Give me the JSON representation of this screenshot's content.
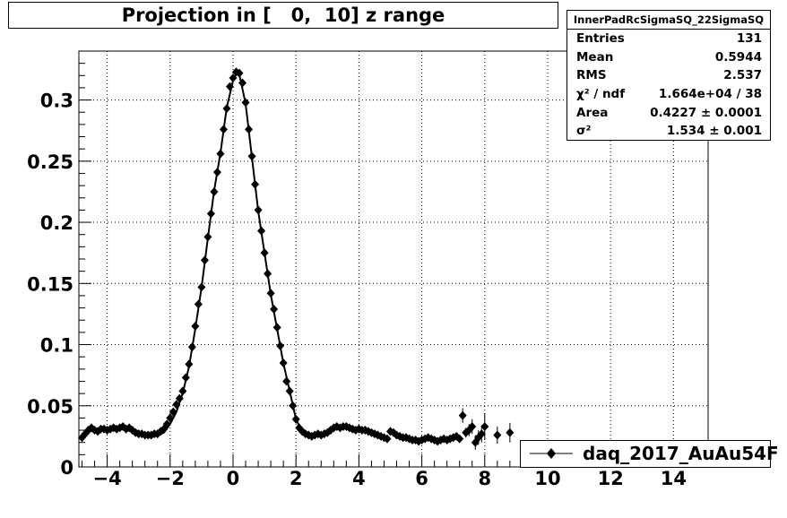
{
  "title": "Projection in [   0,  10] z range",
  "stats": {
    "name": "InnerPadRcSigmaSQ_22SigmaSQ",
    "rows": [
      {
        "label": "Entries",
        "value": "131"
      },
      {
        "label": "Mean",
        "value": "0.5944"
      },
      {
        "label": "RMS",
        "value": "2.537"
      },
      {
        "label": "χ² / ndf",
        "value": "1.664e+04 / 38"
      },
      {
        "label": "Area",
        "value": "0.4227 ± 0.0001"
      },
      {
        "label": "σ²",
        "value": "1.534 ± 0.001"
      }
    ]
  },
  "legend": {
    "label": "daq_2017_AuAu54F"
  },
  "chart_data": {
    "type": "scatter",
    "xlim": [
      -4.9,
      15.1
    ],
    "ylim": [
      0,
      0.34
    ],
    "grid": true,
    "legend_position": "bottom-right",
    "x_ticks": [
      -4,
      -2,
      0,
      2,
      4,
      6,
      8,
      10,
      12,
      14
    ],
    "x_tick_labels": [
      "−4",
      "−2",
      "0",
      "2",
      "4",
      "6",
      "8",
      "10",
      "12",
      "14"
    ],
    "y_ticks": [
      0,
      0.05,
      0.1,
      0.15,
      0.2,
      0.25,
      0.3
    ],
    "y_tick_labels": [
      "0",
      "0.05",
      "0.1",
      "0.15",
      "0.2",
      "0.25",
      "0.3"
    ],
    "series": [
      {
        "name": "daq_2017_AuAu54F",
        "x": [
          -4.8,
          -4.7,
          -4.6,
          -4.5,
          -4.4,
          -4.3,
          -4.2,
          -4.1,
          -4.0,
          -3.9,
          -3.8,
          -3.7,
          -3.6,
          -3.5,
          -3.4,
          -3.3,
          -3.2,
          -3.1,
          -3.0,
          -2.9,
          -2.8,
          -2.7,
          -2.6,
          -2.5,
          -2.4,
          -2.3,
          -2.2,
          -2.1,
          -2.0,
          -1.9,
          -1.8,
          -1.7,
          -1.6,
          -1.5,
          -1.4,
          -1.3,
          -1.2,
          -1.1,
          -1.0,
          -0.9,
          -0.8,
          -0.7,
          -0.6,
          -0.5,
          -0.4,
          -0.3,
          -0.2,
          -0.1,
          0.0,
          0.1,
          0.2,
          0.3,
          0.4,
          0.5,
          0.6,
          0.7,
          0.8,
          0.9,
          1.0,
          1.1,
          1.2,
          1.3,
          1.4,
          1.5,
          1.6,
          1.7,
          1.8,
          1.9,
          2.0,
          2.1,
          2.2,
          2.3,
          2.4,
          2.5,
          2.6,
          2.7,
          2.8,
          2.9,
          3.0,
          3.1,
          3.2,
          3.3,
          3.4,
          3.5,
          3.6,
          3.7,
          3.8,
          3.9,
          4.0,
          4.1,
          4.2,
          4.3,
          4.4,
          4.5,
          4.6,
          4.7,
          4.8,
          4.9,
          5.0,
          5.1,
          5.2,
          5.3,
          5.4,
          5.5,
          5.6,
          5.7,
          5.8,
          5.9,
          6.0,
          6.1,
          6.2,
          6.3,
          6.4,
          6.5,
          6.6,
          6.7,
          6.8,
          6.9,
          7.0,
          7.1,
          7.2,
          7.3,
          7.4,
          7.5,
          7.6,
          7.7,
          7.8,
          7.9,
          8.0,
          8.4,
          8.8
        ],
        "y": [
          0.024,
          0.027,
          0.03,
          0.032,
          0.03,
          0.029,
          0.031,
          0.031,
          0.03,
          0.031,
          0.032,
          0.031,
          0.032,
          0.033,
          0.031,
          0.032,
          0.03,
          0.028,
          0.027,
          0.027,
          0.026,
          0.026,
          0.026,
          0.027,
          0.027,
          0.029,
          0.031,
          0.035,
          0.04,
          0.045,
          0.051,
          0.056,
          0.062,
          0.073,
          0.084,
          0.098,
          0.115,
          0.133,
          0.147,
          0.169,
          0.188,
          0.207,
          0.225,
          0.241,
          0.256,
          0.276,
          0.293,
          0.311,
          0.318,
          0.323,
          0.322,
          0.314,
          0.298,
          0.276,
          0.254,
          0.231,
          0.21,
          0.193,
          0.175,
          0.158,
          0.142,
          0.129,
          0.114,
          0.099,
          0.085,
          0.07,
          0.062,
          0.05,
          0.039,
          0.032,
          0.029,
          0.027,
          0.026,
          0.025,
          0.026,
          0.027,
          0.026,
          0.027,
          0.028,
          0.03,
          0.032,
          0.033,
          0.032,
          0.033,
          0.033,
          0.032,
          0.031,
          0.03,
          0.031,
          0.03,
          0.03,
          0.029,
          0.028,
          0.027,
          0.026,
          0.025,
          0.024,
          0.023,
          0.029,
          0.028,
          0.026,
          0.025,
          0.024,
          0.024,
          0.023,
          0.022,
          0.022,
          0.021,
          0.022,
          0.023,
          0.024,
          0.023,
          0.022,
          0.021,
          0.022,
          0.023,
          0.022,
          0.023,
          0.024,
          0.025,
          0.023,
          0.042,
          0.028,
          0.03,
          0.033,
          0.02,
          0.024,
          0.027,
          0.033,
          0.026,
          0.028
        ],
        "yerr": [
          0.002,
          0.002,
          0.002,
          0.002,
          0.002,
          0.002,
          0.002,
          0.002,
          0.002,
          0.002,
          0.002,
          0.002,
          0.002,
          0.002,
          0.002,
          0.002,
          0.002,
          0.002,
          0.002,
          0.002,
          0.002,
          0.002,
          0.002,
          0.002,
          0.002,
          0.002,
          0.002,
          0.002,
          0.002,
          0.002,
          0.002,
          0.002,
          0.002,
          0.002,
          0.002,
          0.002,
          0.002,
          0.002,
          0.002,
          0.002,
          0.002,
          0.002,
          0.002,
          0.002,
          0.002,
          0.002,
          0.002,
          0.002,
          0.002,
          0.002,
          0.002,
          0.002,
          0.002,
          0.002,
          0.002,
          0.002,
          0.002,
          0.002,
          0.002,
          0.002,
          0.002,
          0.002,
          0.002,
          0.002,
          0.002,
          0.002,
          0.002,
          0.002,
          0.002,
          0.002,
          0.002,
          0.002,
          0.002,
          0.002,
          0.002,
          0.002,
          0.002,
          0.002,
          0.002,
          0.002,
          0.002,
          0.002,
          0.002,
          0.002,
          0.002,
          0.002,
          0.002,
          0.002,
          0.002,
          0.002,
          0.002,
          0.002,
          0.002,
          0.002,
          0.002,
          0.002,
          0.002,
          0.002,
          0.002,
          0.002,
          0.002,
          0.002,
          0.002,
          0.002,
          0.002,
          0.002,
          0.002,
          0.002,
          0.002,
          0.002,
          0.002,
          0.002,
          0.002,
          0.002,
          0.002,
          0.002,
          0.002,
          0.002,
          0.002,
          0.003,
          0.003,
          0.006,
          0.004,
          0.005,
          0.006,
          0.006,
          0.006,
          0.007,
          0.011,
          0.007,
          0.008
        ]
      }
    ],
    "fit": {
      "x": [
        -4.8,
        -4.6,
        -4.4,
        -4.2,
        -4.0,
        -3.8,
        -3.6,
        -3.4,
        -3.2,
        -3.0,
        -2.8,
        -2.6,
        -2.4,
        -2.2,
        -2.0,
        -1.8,
        -1.6,
        -1.4,
        -1.2,
        -1.0,
        -0.8,
        -0.6,
        -0.4,
        -0.2,
        0.0,
        0.1,
        0.2,
        0.4,
        0.6,
        0.8,
        1.0,
        1.2,
        1.4,
        1.6,
        1.8,
        2.0,
        2.2,
        2.4,
        2.6,
        2.8,
        3.0,
        3.2,
        3.4,
        3.6,
        3.8,
        4.0,
        4.2,
        4.4,
        4.6,
        4.8
      ],
      "y": [
        0.026,
        0.029,
        0.03,
        0.031,
        0.031,
        0.031,
        0.032,
        0.032,
        0.031,
        0.029,
        0.027,
        0.026,
        0.026,
        0.028,
        0.035,
        0.045,
        0.06,
        0.082,
        0.113,
        0.147,
        0.187,
        0.226,
        0.257,
        0.294,
        0.316,
        0.321,
        0.321,
        0.297,
        0.253,
        0.209,
        0.175,
        0.141,
        0.113,
        0.085,
        0.062,
        0.039,
        0.029,
        0.026,
        0.026,
        0.026,
        0.028,
        0.031,
        0.033,
        0.033,
        0.031,
        0.03,
        0.029,
        0.028,
        0.026,
        0.024
      ]
    }
  }
}
